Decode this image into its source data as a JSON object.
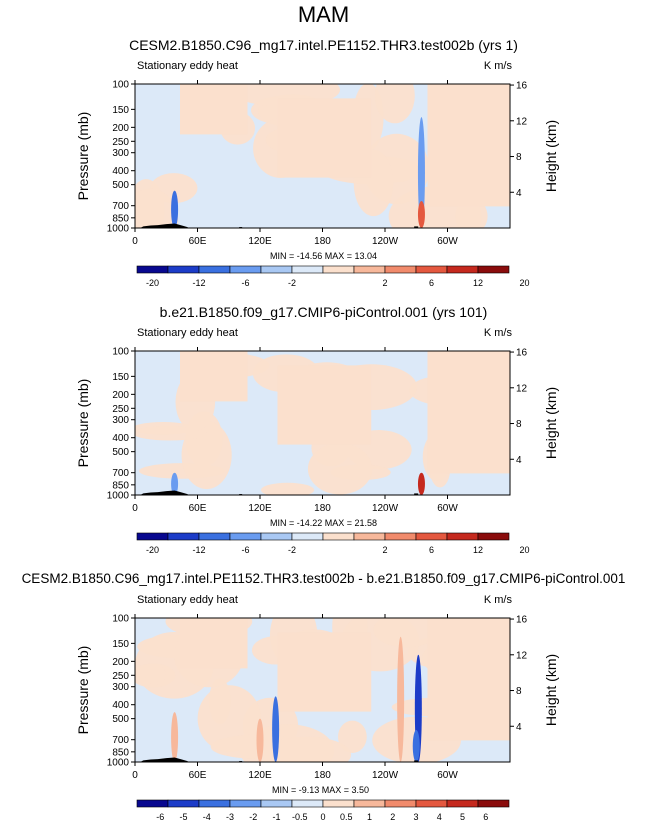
{
  "title": "MAM",
  "colors": {
    "palette10": [
      "#08088f",
      "#1c3cc8",
      "#3a70e0",
      "#6a9cf0",
      "#a9c8f3",
      "#dce9f8",
      "#fbe0cd",
      "#f7b89b",
      "#f18b6c",
      "#e4583f",
      "#c5291e",
      "#8a0c0c"
    ],
    "topography": "#000000",
    "frame": "#000000"
  },
  "chart_data": [
    {
      "id": "panel1",
      "type": "heatmap",
      "title": "CESM2.B1850.C96_mg17.intel.PE1152.THR3.test002b (yrs 1)",
      "left_label": "Stationary eddy heat",
      "right_label": "K m/s",
      "ylabel": "Pressure (mb)",
      "ylabel_right": "Height (km)",
      "y_ticks": [
        "100",
        "150",
        "200",
        "250",
        "300",
        "400",
        "500",
        "700",
        "850",
        "1000"
      ],
      "y_values": [
        100,
        150,
        200,
        250,
        300,
        400,
        500,
        700,
        850,
        1000
      ],
      "height_ticks": [
        "16",
        "12",
        "8",
        "4"
      ],
      "height_values": [
        16,
        12,
        8,
        4
      ],
      "x_ticks": [
        "0",
        "60E",
        "120E",
        "180",
        "120W",
        "60W"
      ],
      "x_values": [
        0,
        60,
        120,
        180,
        240,
        300
      ],
      "xlim": [
        0,
        360
      ],
      "ylim": [
        1000,
        100
      ],
      "stats": "MIN = -14.56  MAX =  13.04",
      "colorbar_labels": [
        "-20",
        "-12",
        "-6",
        "-2",
        "2",
        "6",
        "12",
        "20"
      ],
      "features": [
        {
          "lon": 38,
          "p_top": 550,
          "value": -12
        },
        {
          "lon": 275,
          "p_top": 170,
          "value": -6
        },
        {
          "lon": 275,
          "p_top": 650,
          "value": 12
        }
      ]
    },
    {
      "id": "panel2",
      "type": "heatmap",
      "title": "b.e21.B1850.f09_g17.CMIP6-piControl.001 (yrs 101)",
      "left_label": "Stationary eddy heat",
      "right_label": "K m/s",
      "ylabel": "Pressure (mb)",
      "ylabel_right": "Height (km)",
      "y_ticks": [
        "100",
        "150",
        "200",
        "250",
        "300",
        "400",
        "500",
        "700",
        "850",
        "1000"
      ],
      "y_values": [
        100,
        150,
        200,
        250,
        300,
        400,
        500,
        700,
        850,
        1000
      ],
      "height_ticks": [
        "16",
        "12",
        "8",
        "4"
      ],
      "height_values": [
        16,
        12,
        8,
        4
      ],
      "x_ticks": [
        "0",
        "60E",
        "120E",
        "180",
        "120W",
        "60W"
      ],
      "x_values": [
        0,
        60,
        120,
        180,
        240,
        300
      ],
      "xlim": [
        0,
        360
      ],
      "ylim": [
        1000,
        100
      ],
      "stats": "MIN = -14.22  MAX =  21.58",
      "colorbar_labels": [
        "-20",
        "-12",
        "-6",
        "-2",
        "2",
        "6",
        "12",
        "20"
      ],
      "features": [
        {
          "lon": 38,
          "p_top": 700,
          "value": -6
        },
        {
          "lon": 275,
          "p_top": 700,
          "value": 20
        }
      ]
    },
    {
      "id": "panel3",
      "type": "heatmap",
      "title": "CESM2.B1850.C96_mg17.intel.PE1152.THR3.test002b - b.e21.B1850.f09_g17.CMIP6-piControl.001",
      "left_label": "Stationary eddy heat",
      "right_label": "K m/s",
      "ylabel": "Pressure (mb)",
      "ylabel_right": "Height (km)",
      "y_ticks": [
        "100",
        "150",
        "200",
        "250",
        "300",
        "400",
        "500",
        "700",
        "850",
        "1000"
      ],
      "y_values": [
        100,
        150,
        200,
        250,
        300,
        400,
        500,
        700,
        850,
        1000
      ],
      "height_ticks": [
        "16",
        "12",
        "8",
        "4"
      ],
      "height_values": [
        16,
        12,
        8,
        4
      ],
      "x_ticks": [
        "0",
        "60E",
        "120E",
        "180",
        "120W",
        "60W"
      ],
      "x_values": [
        0,
        60,
        120,
        180,
        240,
        300
      ],
      "xlim": [
        0,
        360
      ],
      "ylim": [
        1000,
        100
      ],
      "stats": "MIN = -9.13  MAX =  3.50",
      "colorbar_labels": [
        "-6",
        "-5",
        "-4",
        "-3",
        "-2",
        "-1",
        "-0.5",
        "0",
        "0.5",
        "1",
        "2",
        "3",
        "4",
        "5",
        "6"
      ],
      "features": [
        {
          "lon": 38,
          "p_top": 450,
          "value": 2
        },
        {
          "lon": 135,
          "p_top": 350,
          "value": -3
        },
        {
          "lon": 120,
          "p_top": 500,
          "value": 2
        },
        {
          "lon": 272,
          "p_top": 180,
          "value": -5
        },
        {
          "lon": 270,
          "p_top": 600,
          "value": -4
        },
        {
          "lon": 255,
          "p_top": 135,
          "value": 1
        }
      ]
    }
  ]
}
